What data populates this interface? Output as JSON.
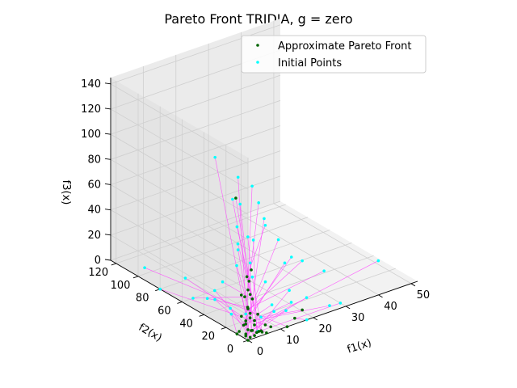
{
  "chart_data": {
    "type": "scatter",
    "projection": "3d",
    "title": "Pareto Front TRIDIA, g = zero",
    "xlabel": "f1(x)",
    "ylabel": "f2(x)",
    "zlabel": "f3(x)",
    "xlim": [
      0,
      52
    ],
    "ylim": [
      0,
      125
    ],
    "zlim": [
      0,
      145
    ],
    "xticks": [
      "0",
      "10",
      "20",
      "30",
      "40",
      "50"
    ],
    "yticks": [
      "0",
      "20",
      "40",
      "60",
      "80",
      "100",
      "120"
    ],
    "zticks": [
      "0",
      "20",
      "40",
      "60",
      "80",
      "100",
      "120",
      "140"
    ],
    "grid": true,
    "legend_position": "top-right",
    "series": [
      {
        "name": "Approximate Pareto Front",
        "color": "#006400",
        "points": [
          [
            0,
            0,
            0
          ],
          [
            1,
            1,
            1
          ],
          [
            0,
            2,
            4
          ],
          [
            2,
            0,
            2
          ],
          [
            1,
            3,
            6
          ],
          [
            3,
            1,
            3
          ],
          [
            0,
            4,
            10
          ],
          [
            2,
            2,
            5
          ],
          [
            4,
            0,
            4
          ],
          [
            1,
            5,
            12
          ],
          [
            3,
            3,
            8
          ],
          [
            0,
            6,
            16
          ],
          [
            2,
            4,
            14
          ],
          [
            1,
            1,
            20
          ],
          [
            0,
            0,
            25
          ],
          [
            2,
            2,
            30
          ],
          [
            1,
            1,
            35
          ],
          [
            0,
            0,
            40
          ],
          [
            1,
            2,
            45
          ],
          [
            0,
            1,
            50
          ],
          [
            1,
            0,
            55
          ],
          [
            3,
            6,
            2
          ],
          [
            5,
            2,
            1
          ],
          [
            0,
            8,
            3
          ],
          [
            6,
            1,
            0
          ],
          [
            8,
            3,
            2
          ],
          [
            12,
            0,
            0
          ],
          [
            4,
            6,
            9
          ],
          [
            2,
            8,
            7
          ],
          [
            8,
            8,
            1
          ],
          [
            0,
            10,
            0
          ],
          [
            3,
            20,
            100
          ],
          [
            1,
            5,
            0
          ],
          [
            5,
            5,
            0
          ],
          [
            15,
            2,
            3
          ],
          [
            10,
            30,
            2
          ],
          [
            20,
            10,
            1
          ],
          [
            2,
            12,
            28
          ],
          [
            0,
            3,
            33
          ],
          [
            3,
            0,
            18
          ]
        ]
      },
      {
        "name": "Initial Points",
        "color": "#00ffff",
        "points": [
          [
            2,
            15,
            120
          ],
          [
            0,
            30,
            130
          ],
          [
            8,
            20,
            105
          ],
          [
            6,
            25,
            90
          ],
          [
            10,
            15,
            80
          ],
          [
            5,
            10,
            70
          ],
          [
            12,
            8,
            65
          ],
          [
            3,
            18,
            60
          ],
          [
            7,
            30,
            55
          ],
          [
            15,
            5,
            50
          ],
          [
            45,
            15,
            15
          ],
          [
            20,
            10,
            40
          ],
          [
            18,
            20,
            35
          ],
          [
            10,
            40,
            30
          ],
          [
            25,
            5,
            30
          ],
          [
            4,
            35,
            25
          ],
          [
            2,
            20,
            100
          ],
          [
            10,
            20,
            90
          ],
          [
            0,
            10,
            85
          ],
          [
            8,
            8,
            80
          ],
          [
            5,
            15,
            70
          ],
          [
            1,
            1,
            60
          ],
          [
            3,
            5,
            45
          ],
          [
            6,
            2,
            40
          ],
          [
            1,
            60,
            18
          ],
          [
            0,
            80,
            0
          ],
          [
            2,
            100,
            5
          ],
          [
            25,
            0,
            5
          ],
          [
            20,
            20,
            2
          ],
          [
            15,
            10,
            5
          ],
          [
            5,
            30,
            1
          ],
          [
            4,
            3,
            2
          ],
          [
            12,
            12,
            6
          ],
          [
            30,
            5,
            0
          ],
          [
            18,
            0,
            0
          ],
          [
            1,
            40,
            12
          ],
          [
            6,
            6,
            10
          ],
          [
            2,
            8,
            15
          ],
          [
            0,
            50,
            8
          ],
          [
            8,
            2,
            20
          ],
          [
            14,
            4,
            25
          ],
          [
            3,
            25,
            10
          ],
          [
            22,
            12,
            8
          ],
          [
            10,
            60,
            0
          ],
          [
            5,
            45,
            5
          ]
        ]
      }
    ],
    "connections_color": "#ff44ff"
  }
}
